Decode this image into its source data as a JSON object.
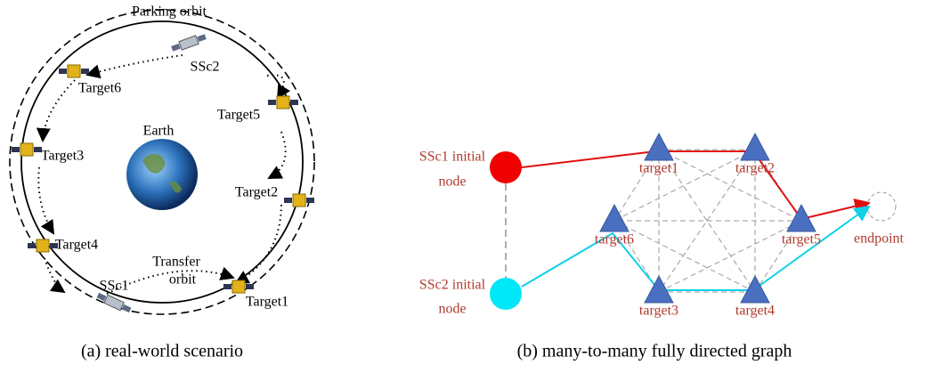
{
  "panel_a": {
    "labels": {
      "parking_orbit": "Parking orbit",
      "earth": "Earth",
      "transfer_orbit": [
        "Transfer",
        "orbit"
      ],
      "ssc1": "SSc1",
      "ssc2": "SSc2",
      "targets": [
        "Target1",
        "Target2",
        "Target3",
        "Target4",
        "Target5",
        "Target6"
      ]
    },
    "caption": "(a) real-world scenario"
  },
  "panel_b": {
    "start_nodes": [
      [
        "SSc1 initial",
        "node"
      ],
      [
        "SSc2 initial",
        "node"
      ]
    ],
    "targets": [
      "target1",
      "target2",
      "target3",
      "target4",
      "target5",
      "target6"
    ],
    "endpoint": "endpoint",
    "caption": "(b) many-to-many fully directed graph"
  }
}
